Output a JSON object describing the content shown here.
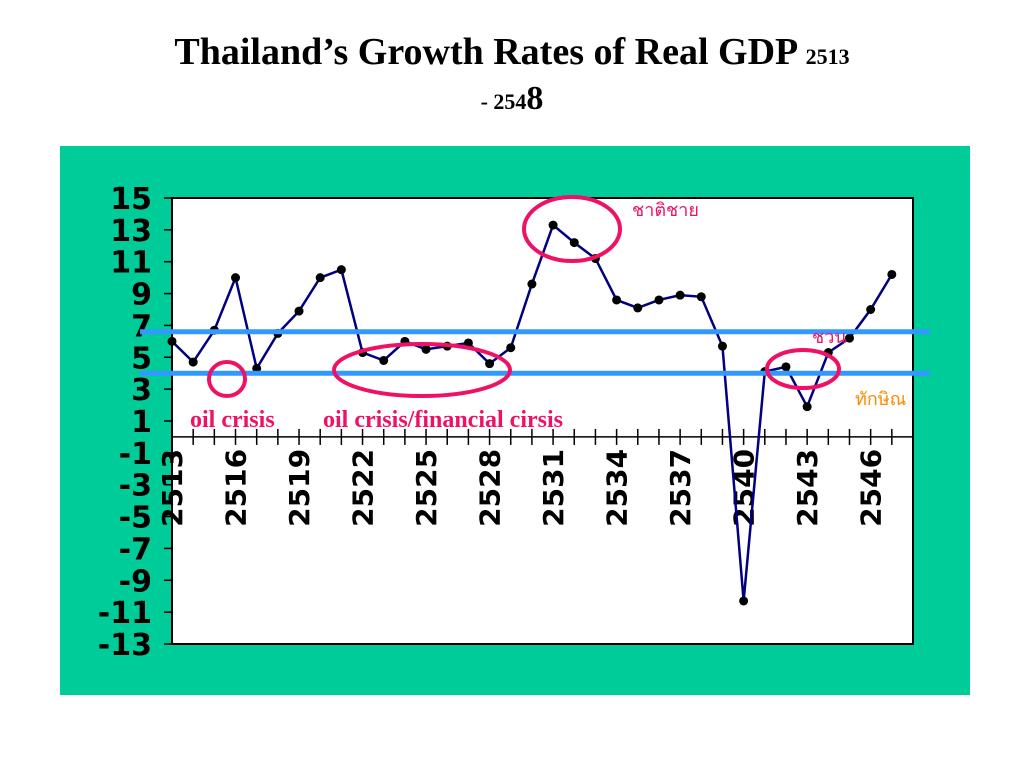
{
  "title": {
    "main": "Thailand’s Growth  Rates of Real GDP ",
    "range_start": "2513",
    "range_prefix": "- 254",
    "range_last": "8"
  },
  "colors": {
    "panel": "#00cc99",
    "line": "#000080",
    "reference_lines": "#3399ff",
    "circles": "#ee1166",
    "annot_pink": "#ee1166",
    "annot_orange": "#ff8800"
  },
  "chart_data": {
    "type": "line",
    "x": [
      2513,
      2514,
      2515,
      2516,
      2517,
      2518,
      2519,
      2520,
      2521,
      2522,
      2523,
      2524,
      2525,
      2526,
      2527,
      2528,
      2529,
      2530,
      2531,
      2532,
      2533,
      2534,
      2535,
      2536,
      2537,
      2538,
      2539,
      2540,
      2541,
      2542,
      2543,
      2544,
      2545,
      2546,
      2547
    ],
    "y": [
      6.0,
      4.7,
      6.7,
      10.0,
      4.3,
      6.5,
      7.9,
      10.0,
      10.5,
      5.3,
      4.8,
      6.0,
      5.5,
      5.7,
      5.9,
      4.6,
      5.6,
      9.6,
      13.3,
      12.2,
      11.2,
      8.6,
      8.1,
      8.6,
      8.9,
      8.8,
      5.7,
      -10.3,
      4.1,
      4.4,
      1.9,
      5.3,
      6.2,
      8.0,
      10.2
    ],
    "x_tick_labels": [
      "2513",
      "2516",
      "2519",
      "2522",
      "2525",
      "2528",
      "2531",
      "2534",
      "2537",
      "2540",
      "2543",
      "2546"
    ],
    "y_tick_labels": [
      "15",
      "13",
      "11",
      "9",
      "7",
      "5",
      "3",
      "1",
      "-1",
      "-3",
      "-5",
      "-7",
      "-9",
      "-11",
      "-13"
    ],
    "ylim": [
      -13,
      15
    ],
    "xlim": [
      2513,
      2548
    ],
    "reference_lines": [
      6.6,
      4.0
    ],
    "annotations": {
      "oil_crisis": "oil crisis",
      "oil_crisis_financial": "oil crisis/financial cirsis",
      "chatichai": "ชาติชาย",
      "chuan": "ชวน",
      "thaksin": "ทักษิณ"
    }
  }
}
